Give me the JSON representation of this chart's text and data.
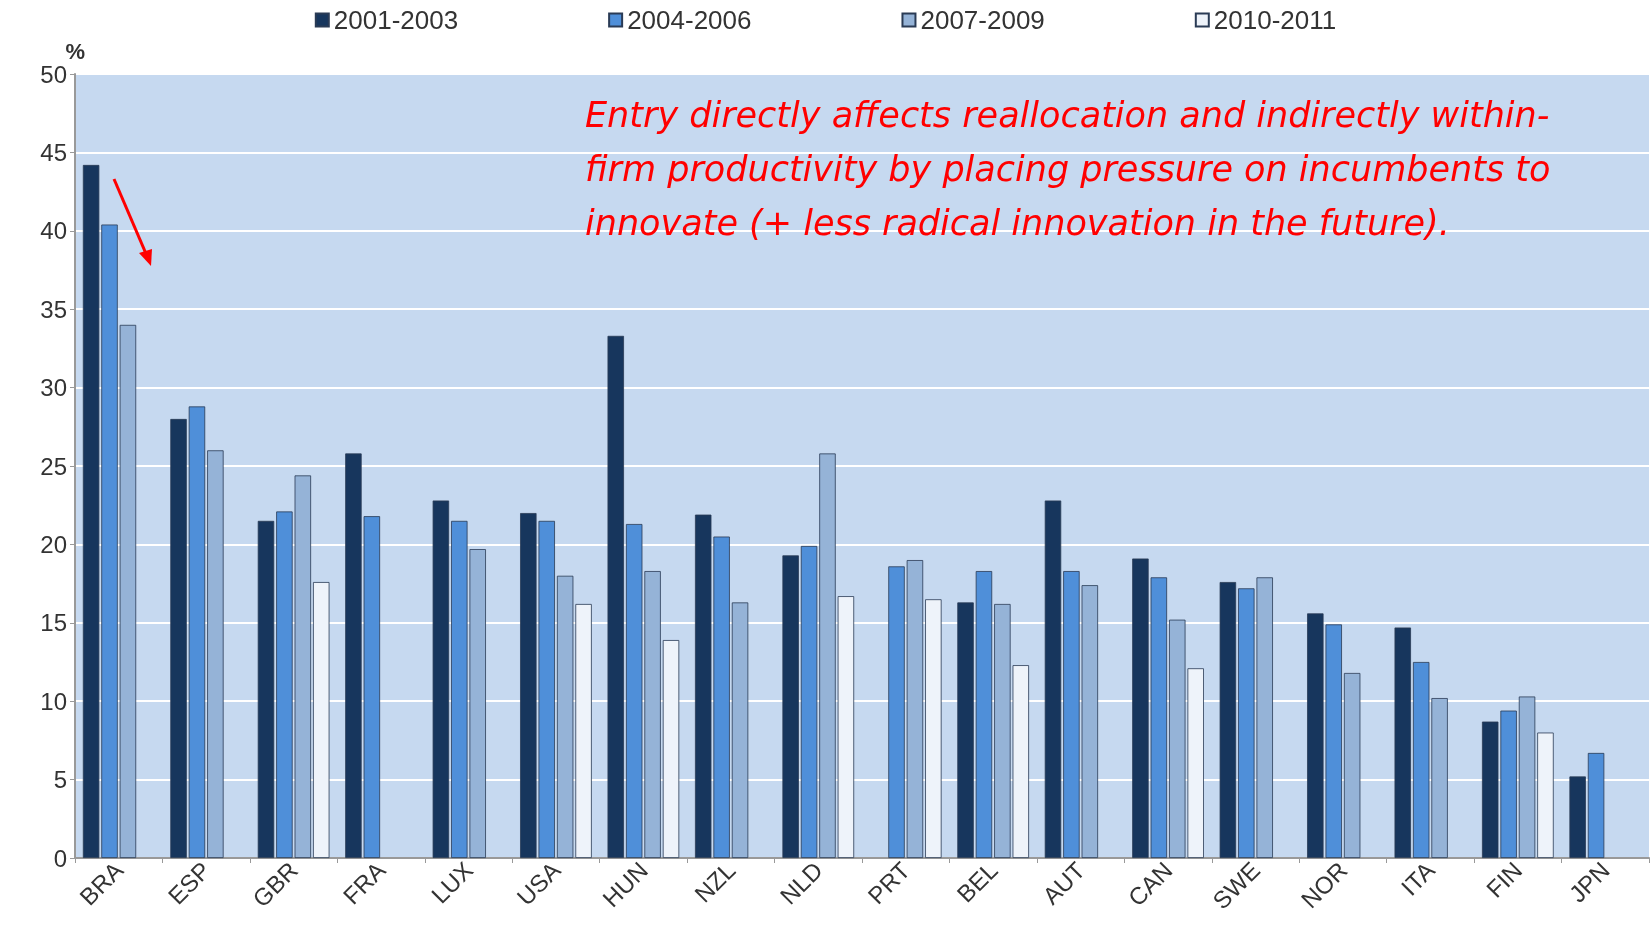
{
  "chart_data": {
    "type": "bar",
    "ylabel": "%",
    "categories": [
      "BRA",
      "ESP",
      "GBR",
      "FRA",
      "LUX",
      "USA",
      "HUN",
      "NZL",
      "NLD",
      "PRT",
      "BEL",
      "AUT",
      "CAN",
      "SWE",
      "NOR",
      "ITA",
      "FIN",
      "JPN"
    ],
    "series": [
      {
        "name": "2001-2003",
        "color": "#17365d",
        "values": [
          44.2,
          28.0,
          21.5,
          25.8,
          22.8,
          22.0,
          33.3,
          21.9,
          19.3,
          null,
          16.3,
          22.8,
          19.1,
          17.6,
          15.6,
          14.7,
          8.7,
          5.2
        ]
      },
      {
        "name": "2004-2006",
        "color": "#4f8fd9",
        "values": [
          40.4,
          28.8,
          22.1,
          21.8,
          21.5,
          21.5,
          21.3,
          20.5,
          19.9,
          18.6,
          18.3,
          18.3,
          17.9,
          17.2,
          14.9,
          12.5,
          9.4,
          6.7
        ]
      },
      {
        "name": "2007-2009",
        "color": "#95b3d7",
        "values": [
          34.0,
          26.0,
          24.4,
          null,
          19.7,
          18.0,
          18.3,
          16.3,
          25.8,
          19.0,
          16.2,
          17.4,
          15.2,
          17.9,
          11.8,
          10.2,
          10.3,
          null
        ]
      },
      {
        "name": "2010-2011",
        "color": "#eef3fa",
        "values": [
          null,
          null,
          17.6,
          null,
          null,
          16.2,
          13.9,
          null,
          16.7,
          16.5,
          12.3,
          null,
          12.1,
          null,
          null,
          null,
          8.0,
          null
        ]
      }
    ],
    "ylim": [
      0,
      50
    ],
    "yticks": [
      0,
      5,
      10,
      15,
      20,
      25,
      30,
      35,
      40,
      45,
      50
    ],
    "grid": "y",
    "legend": "top",
    "annotations": [
      "Entry directly affects reallocation and indirectly within-firm productivity by placing pressure on incumbents to innovate (+ less radical innovation in the future)."
    ]
  }
}
